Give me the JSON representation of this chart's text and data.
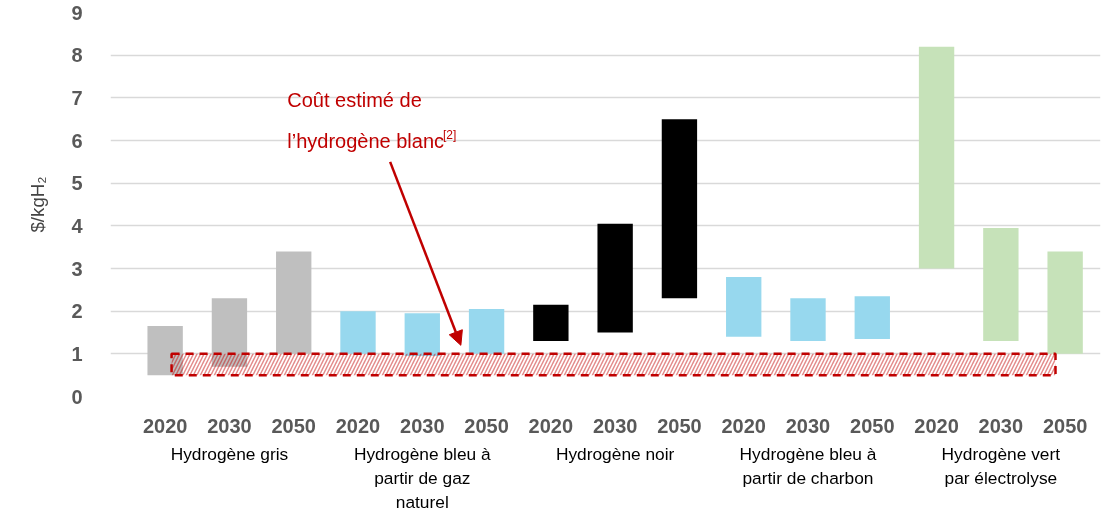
{
  "chart_data": {
    "type": "bar",
    "ylabel": "$/kgH₂",
    "categories": [
      "2020",
      "2030",
      "2050",
      "2020",
      "2030",
      "2050",
      "2020",
      "2030",
      "2050",
      "2020",
      "2030",
      "2050",
      "2020",
      "2030",
      "2050"
    ],
    "values": [
      1.15,
      1.6,
      2.4,
      1.0,
      1.0,
      1.05,
      0.85,
      2.55,
      4.2,
      1.4,
      1.0,
      1.0,
      5.2,
      2.65,
      2.4
    ],
    "base": [
      0.5,
      0.7,
      1.0,
      1.0,
      0.95,
      1.0,
      1.3,
      1.5,
      2.3,
      1.4,
      1.3,
      1.35,
      3.0,
      1.3,
      1.0
    ],
    "colors": [
      "#bfbfbf",
      "#bfbfbf",
      "#bfbfbf",
      "#97d8ee",
      "#97d8ee",
      "#97d8ee",
      "#000000",
      "#000000",
      "#000000",
      "#97d8ee",
      "#97d8ee",
      "#97d8ee",
      "#c6e2b9",
      "#c6e2b9",
      "#c6e2b9"
    ],
    "annotations": [
      "Hydrogène gris",
      "Hydrogène bleu à partir de gaz naturel",
      "Hydrogène noir",
      "Hydrogène bleu à partir de charbon",
      "Hydrogène vert par électrolyse"
    ],
    "bands": [
      {
        "axis": "y",
        "from": 0.5,
        "to": 1,
        "color": "#c00000",
        "label": "Coût estimé de l’hydrogène blanc$^{[2]}$"
      }
    ],
    "ylim": [
      0,
      9
    ],
    "yticks": [
      0,
      1,
      2,
      3,
      4,
      5,
      6,
      7,
      8,
      9
    ],
    "grid": "y"
  }
}
